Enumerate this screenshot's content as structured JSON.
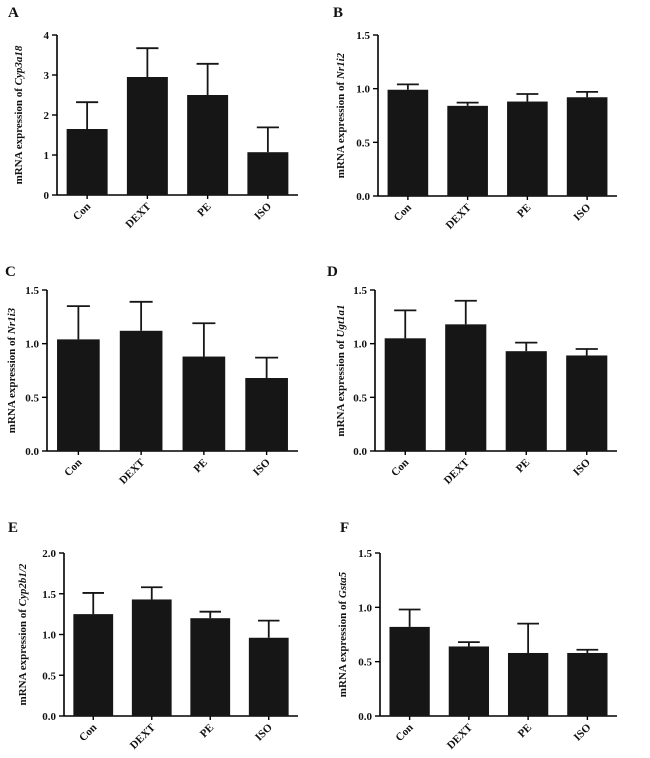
{
  "chart_data": [
    {
      "panel": "A",
      "type": "bar",
      "ylabel_prefix": "mRNA expression of ",
      "gene": "Cyp3a18",
      "categories": [
        "Con",
        "DEXT",
        "PE",
        "ISO"
      ],
      "values": [
        1.65,
        2.95,
        2.5,
        1.07
      ],
      "errors": [
        0.67,
        0.72,
        0.78,
        0.62
      ],
      "ylim": [
        0,
        4
      ],
      "yticks": [
        "0",
        "1",
        "2",
        "3",
        "4"
      ]
    },
    {
      "panel": "B",
      "type": "bar",
      "ylabel_prefix": "mRNA expression of ",
      "gene": "Nr1i2",
      "categories": [
        "Con",
        "DEXT",
        "PE",
        "ISO"
      ],
      "values": [
        0.99,
        0.84,
        0.88,
        0.92
      ],
      "errors": [
        0.05,
        0.03,
        0.07,
        0.05
      ],
      "ylim": [
        0,
        1.5
      ],
      "yticks": [
        "0.0",
        "0.5",
        "1.0",
        "1.5"
      ]
    },
    {
      "panel": "C",
      "type": "bar",
      "ylabel_prefix": "mRNA expression of ",
      "gene": "Nr1i3",
      "categories": [
        "Con",
        "DEXT",
        "PE",
        "ISO"
      ],
      "values": [
        1.04,
        1.12,
        0.88,
        0.68
      ],
      "errors": [
        0.31,
        0.27,
        0.31,
        0.19
      ],
      "ylim": [
        0,
        1.5
      ],
      "yticks": [
        "0.0",
        "0.5",
        "1.0",
        "1.5"
      ]
    },
    {
      "panel": "D",
      "type": "bar",
      "ylabel_prefix": "mRNA expression of ",
      "gene": "Ugt1a1",
      "categories": [
        "Con",
        "DEXT",
        "PE",
        "ISO"
      ],
      "values": [
        1.05,
        1.18,
        0.93,
        0.89
      ],
      "errors": [
        0.26,
        0.22,
        0.08,
        0.06
      ],
      "ylim": [
        0,
        1.5
      ],
      "yticks": [
        "0.0",
        "0.5",
        "1.0",
        "1.5"
      ]
    },
    {
      "panel": "E",
      "type": "bar",
      "ylabel_prefix": "mRNA expression of ",
      "gene": "Cyp2b1/2",
      "categories": [
        "Con",
        "DEXT",
        "PE",
        "ISO"
      ],
      "values": [
        1.25,
        1.43,
        1.2,
        0.96
      ],
      "errors": [
        0.26,
        0.15,
        0.08,
        0.21
      ],
      "ylim": [
        0,
        2
      ],
      "yticks": [
        "0.0",
        "0.5",
        "1.0",
        "1.5",
        "2.0"
      ]
    },
    {
      "panel": "F",
      "type": "bar",
      "ylabel_prefix": "mRNA expression of ",
      "gene": "Gsta5",
      "categories": [
        "Con",
        "DEXT",
        "PE",
        "ISO"
      ],
      "values": [
        0.82,
        0.64,
        0.58,
        0.58
      ],
      "errors": [
        0.16,
        0.04,
        0.27,
        0.03
      ],
      "ylim": [
        0,
        1.5
      ],
      "yticks": [
        "0.0",
        "0.5",
        "1.0",
        "1.5"
      ]
    }
  ],
  "colors": {
    "bar": "#161616",
    "axis": "#000000"
  }
}
